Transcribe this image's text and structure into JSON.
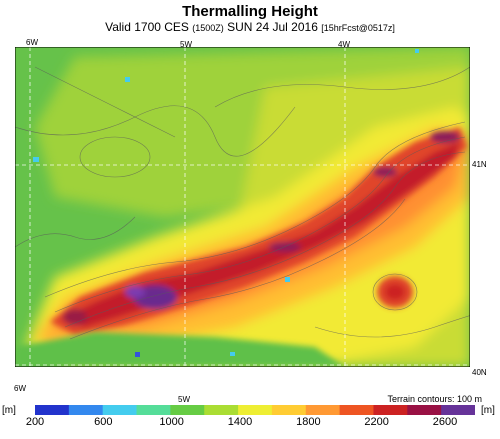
{
  "title": "Thermalling Height",
  "subtitle": {
    "main": "Valid 1700 CES",
    "utc": "(1500Z)",
    "date": "SUN 24 Jul 2016",
    "run": "[15hrFcst@0517z]"
  },
  "map_labels": {
    "lon_6w": "6W",
    "lon_5w": "5W",
    "lon_4w": "4W",
    "lat_41n": "41N",
    "lat_40n": "40N"
  },
  "legend": {
    "unit": "[m]",
    "contour_note": "Terrain contours: 100 m",
    "ticks": [
      "200",
      "600",
      "1000",
      "1400",
      "1800",
      "2200",
      "2600"
    ],
    "colors": [
      "#2233cc",
      "#3388ee",
      "#44ccee",
      "#55dd99",
      "#66cc44",
      "#aadd33",
      "#eeee33",
      "#ffcc33",
      "#ff9933",
      "#ee5522",
      "#cc2222",
      "#991144",
      "#663399"
    ]
  }
}
